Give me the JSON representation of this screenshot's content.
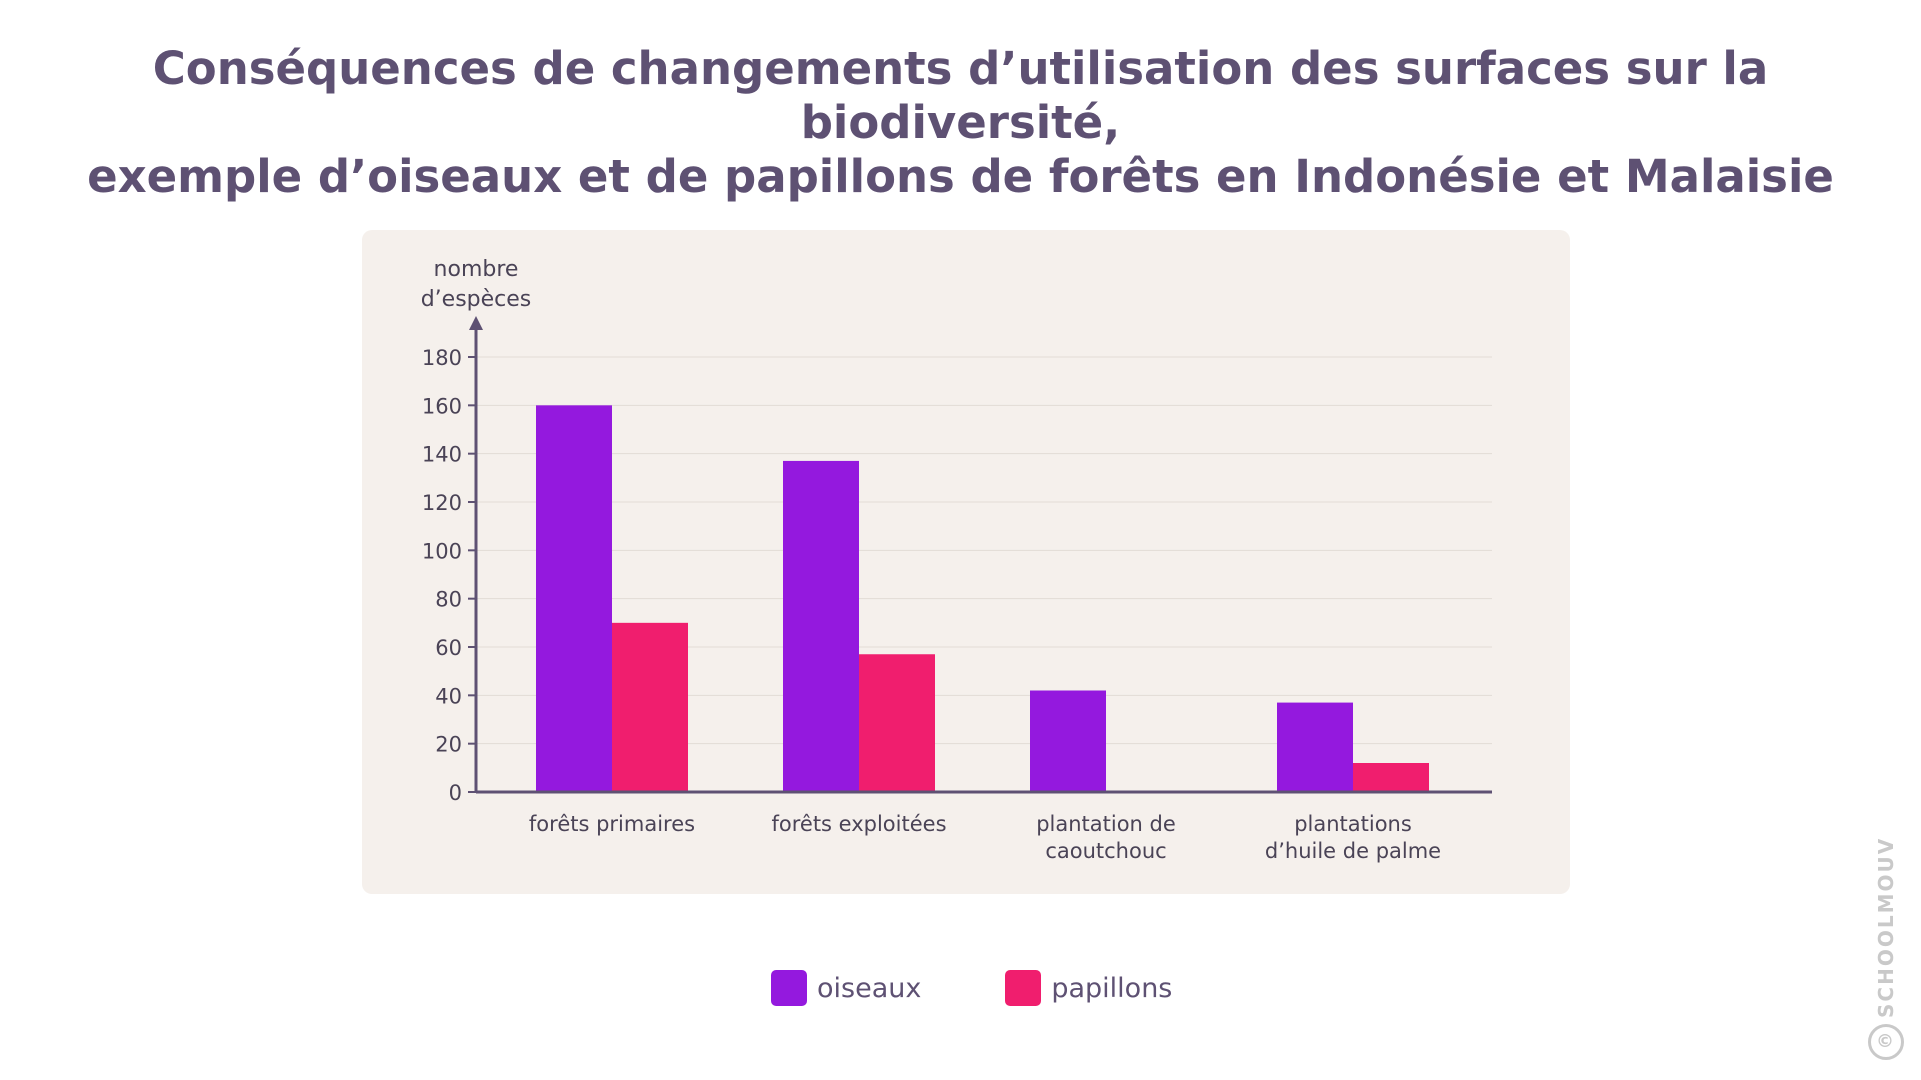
{
  "title": {
    "line1": "Conséquences de changements d’utilisation des surfaces sur la biodiversité,",
    "line2": "exemple d’oiseaux et de papillons de forêts en Indonésie et Malaisie"
  },
  "legend": {
    "items": [
      {
        "label": "oiseaux",
        "color": "#9419de"
      },
      {
        "label": "papillons",
        "color": "#f01e6e"
      }
    ]
  },
  "watermark": {
    "text": "SCHOOLMOUV",
    "symbol": "©"
  },
  "chart_data": {
    "type": "bar",
    "ylabel_lines": [
      "nombre",
      "d’espèces"
    ],
    "xlabel": "",
    "categories": [
      [
        "forêts primaires"
      ],
      [
        "forêts exploitées"
      ],
      [
        "plantation de",
        "caoutchouc"
      ],
      [
        "plantations",
        "d’huile de palme"
      ]
    ],
    "series": [
      {
        "name": "oiseaux",
        "color": "#9419de",
        "values": [
          160,
          137,
          42,
          37
        ]
      },
      {
        "name": "papillons",
        "color": "#f01e6e",
        "values": [
          70,
          57,
          0,
          12
        ]
      }
    ],
    "ylim": [
      0,
      180
    ],
    "yticks": [
      0,
      20,
      40,
      60,
      80,
      100,
      120,
      140,
      160,
      180
    ],
    "grid": true,
    "legend_position": "bottom-center"
  }
}
